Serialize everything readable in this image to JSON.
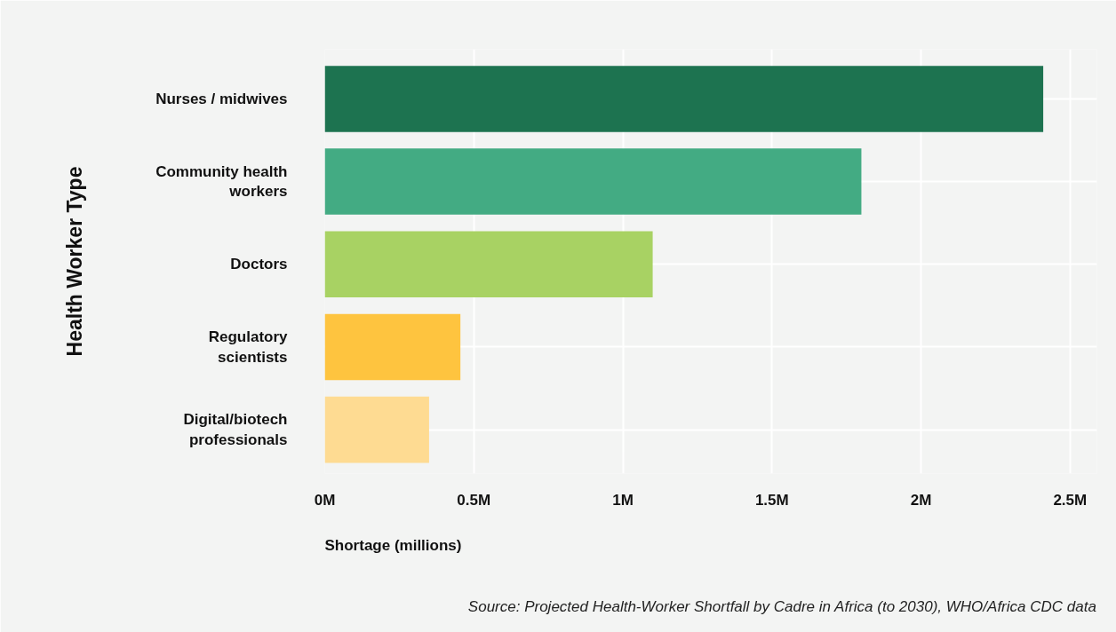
{
  "chart_data": {
    "type": "bar",
    "orientation": "horizontal",
    "categories": [
      "Nurses / midwives",
      "Community health workers",
      "Doctors",
      "Regulatory scientists",
      "Digital/biotech professionals"
    ],
    "values": [
      2.41,
      1.8,
      1.1,
      0.455,
      0.35
    ],
    "colors": [
      "#1d7350",
      "#43ab83",
      "#a8d263",
      "#fec43f",
      "#fedb92"
    ],
    "xlabel": "Shortage (millions)",
    "ylabel": "Health Worker Type",
    "xlim": [
      0,
      2.59
    ],
    "xticks": [
      {
        "value": 0,
        "label": "0M"
      },
      {
        "value": 0.5,
        "label": "0.5M"
      },
      {
        "value": 1,
        "label": "1M"
      },
      {
        "value": 1.5,
        "label": "1.5M"
      },
      {
        "value": 2,
        "label": "2M"
      },
      {
        "value": 2.5,
        "label": "2.5M"
      }
    ],
    "grid": true,
    "annotations": [
      "Source: Projected Health-Worker Shortfall by Cadre in Africa (to 2030), WHO/Africa CDC data"
    ]
  }
}
